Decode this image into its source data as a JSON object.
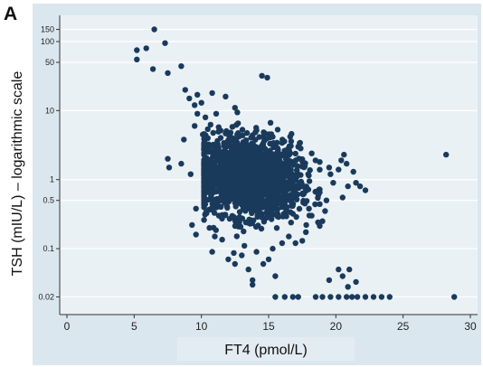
{
  "colors": {
    "background": "#ffffff",
    "outer": "#dbe7ee",
    "plot_area": "#eaf1f5",
    "marker": "#1a3a5c",
    "title_band": "#e3ecf2"
  },
  "chart_data": {
    "type": "scatter",
    "panel_label": "A",
    "xlabel": "FT4 (pmol/L)",
    "ylabel": "TSH (mIU/L) – logarithmic scale",
    "xlim": [
      0,
      30
    ],
    "ylim": [
      0.015,
      200
    ],
    "y_scale": "log",
    "grid": "horizontal",
    "x_ticks": [
      0,
      5,
      10,
      15,
      20,
      25,
      30
    ],
    "x_tick_labels": [
      "0",
      "5",
      "10",
      "15",
      "20",
      "25",
      "30"
    ],
    "y_ticks": [
      0.02,
      0.1,
      0.5,
      1,
      10,
      50,
      100,
      150
    ],
    "y_tick_labels": [
      "0.02",
      "0.1",
      "0.5",
      "1",
      "10",
      "50",
      "100",
      "150"
    ],
    "points": [
      [
        5.2,
        55
      ],
      [
        5.2,
        75
      ],
      [
        5.9,
        80
      ],
      [
        6.5,
        150
      ],
      [
        6.4,
        40
      ],
      [
        7.3,
        95
      ],
      [
        7.5,
        35
      ],
      [
        8.5,
        44
      ],
      [
        8.8,
        20
      ],
      [
        9.1,
        15
      ],
      [
        9.5,
        12
      ],
      [
        9.7,
        17
      ],
      [
        10.0,
        13
      ],
      [
        9.7,
        9
      ],
      [
        10.3,
        8
      ],
      [
        10.8,
        18
      ],
      [
        11.1,
        9
      ],
      [
        11.8,
        16
      ],
      [
        12.5,
        11
      ],
      [
        9.5,
        6
      ],
      [
        14.5,
        32
      ],
      [
        14.9,
        30
      ],
      [
        8.7,
        3.8
      ],
      [
        11.0,
        3.2
      ],
      [
        7.5,
        2.0
      ],
      [
        9.2,
        1.2
      ],
      [
        9.6,
        0.38
      ],
      [
        9.3,
        0.22
      ],
      [
        9.6,
        0.16
      ],
      [
        11.0,
        0.15
      ],
      [
        10.8,
        0.09
      ],
      [
        12.0,
        0.07
      ],
      [
        12.5,
        0.06
      ],
      [
        13.0,
        0.08
      ],
      [
        13.5,
        0.05
      ],
      [
        14.1,
        0.09
      ],
      [
        14.6,
        0.06
      ],
      [
        15.0,
        0.07
      ],
      [
        15.3,
        0.1
      ],
      [
        16.0,
        0.12
      ],
      [
        16.5,
        0.15
      ],
      [
        17.0,
        0.12
      ],
      [
        17.5,
        0.13
      ],
      [
        15.5,
        0.04
      ],
      [
        13.8,
        0.035
      ],
      [
        13.8,
        0.03
      ],
      [
        15.5,
        0.02
      ],
      [
        16.2,
        0.02
      ],
      [
        16.8,
        0.02
      ],
      [
        17.2,
        0.02
      ],
      [
        18.5,
        0.02
      ],
      [
        19.0,
        0.02
      ],
      [
        19.6,
        0.02
      ],
      [
        20.2,
        0.02
      ],
      [
        20.8,
        0.02
      ],
      [
        21.2,
        0.02
      ],
      [
        21.6,
        0.02
      ],
      [
        22.2,
        0.02
      ],
      [
        22.8,
        0.02
      ],
      [
        23.4,
        0.02
      ],
      [
        24.0,
        0.02
      ],
      [
        28.8,
        0.02
      ],
      [
        20.2,
        0.05
      ],
      [
        21.0,
        0.05
      ],
      [
        20.9,
        0.028
      ],
      [
        19.5,
        0.035
      ],
      [
        21.5,
        0.033
      ],
      [
        20.5,
        0.04
      ],
      [
        18.0,
        0.38
      ],
      [
        18.7,
        0.6
      ],
      [
        19.3,
        0.5
      ],
      [
        19.8,
        0.9
      ],
      [
        20.2,
        1.4
      ],
      [
        20.8,
        1.7
      ],
      [
        21.3,
        1.3
      ],
      [
        21.8,
        0.8
      ],
      [
        22.2,
        0.7
      ],
      [
        20.6,
        2.3
      ],
      [
        20.4,
        1.9
      ],
      [
        19.6,
        1.2
      ],
      [
        20.9,
        0.8
      ],
      [
        19.0,
        0.25
      ],
      [
        19.2,
        0.35
      ],
      [
        18.2,
        2.4
      ],
      [
        18.8,
        1.8
      ],
      [
        19.5,
        1.5
      ],
      [
        20.5,
        0.55
      ],
      [
        21.5,
        0.9
      ],
      [
        17.8,
        0.22
      ],
      [
        28.2,
        2.3
      ],
      [
        7.6,
        1.5
      ],
      [
        8.5,
        1.7
      ],
      [
        10.1,
        4.5
      ],
      [
        13.8,
        4.4
      ],
      [
        14.6,
        4.2
      ],
      [
        16.0,
        3.4
      ],
      [
        17.2,
        3.0
      ],
      [
        16.7,
        4.6
      ],
      [
        10.6,
        0.2
      ],
      [
        11.3,
        0.3
      ],
      [
        12.1,
        0.27
      ],
      [
        13.2,
        0.11
      ],
      [
        16.8,
        0.32
      ],
      [
        17.7,
        0.45
      ],
      [
        18.2,
        0.3
      ]
    ],
    "cluster": {
      "description_omitted": true,
      "center_ft4": 13.5,
      "center_tsh": 1.1,
      "count": 1800
    }
  }
}
